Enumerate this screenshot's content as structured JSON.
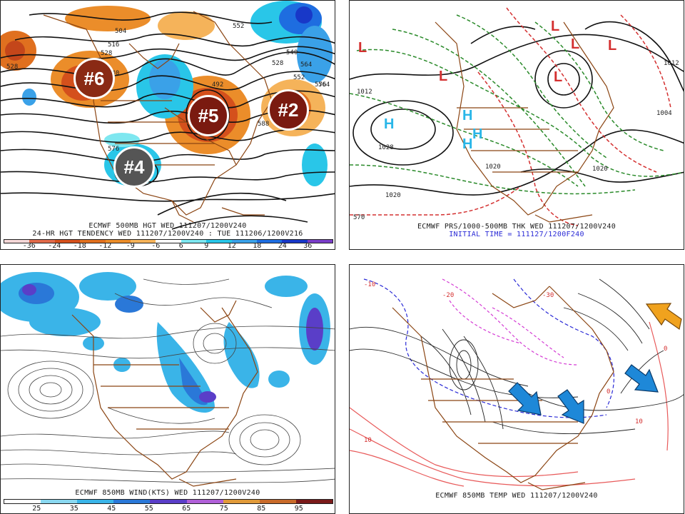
{
  "panels": {
    "tl": {
      "caption1": "ECMWF 500MB HGT WED 111207/1200V240",
      "caption2": "24-HR HGT TENDENCY WED 111207/1200V240 : TUE 111206/1200V216",
      "ticks": [
        "-36",
        "-24",
        "-18",
        "-12",
        "-9",
        "-6",
        "6",
        "9",
        "12",
        "18",
        "24",
        "36"
      ],
      "contour_labels": [
        "528",
        "504",
        "516",
        "528",
        "540",
        "552",
        "564",
        "576",
        "588",
        "492",
        "528",
        "540",
        "552",
        "564",
        "576"
      ],
      "badges": [
        "#6",
        "#5",
        "#2",
        "#4"
      ]
    },
    "tr": {
      "caption1": "ECMWF PRS/1000-500MB THK WED 111207/1200V240",
      "caption2": "INITIAL TIME = 111127/1200F240",
      "high_labels": [
        "H",
        "H",
        "H",
        "H"
      ],
      "low_labels": [
        "L",
        "L",
        "L",
        "L",
        "L",
        "L"
      ],
      "contour_labels": [
        "1028",
        "1020",
        "1020",
        "1012",
        "1004",
        "1012",
        "1020",
        "570"
      ]
    },
    "bl": {
      "caption1": "ECMWF 850MB WIND(KTS) WED 111207/1200V240",
      "ticks": [
        "25",
        "35",
        "45",
        "55",
        "65",
        "75",
        "85",
        "95"
      ]
    },
    "br": {
      "caption1": "ECMWF 850MB TEMP WED 111207/1200V240",
      "contour_labels": [
        "-10",
        "-20",
        "-30",
        "0",
        "10",
        "10",
        "0"
      ]
    }
  },
  "colors": {
    "tl_scale": [
      "#f4d7d7",
      "#e06a4a",
      "#d4501c",
      "#e0701f",
      "#eb8d2a",
      "#f5b35a",
      "#ffffff",
      "#7ee7f0",
      "#29c6e8",
      "#3aa1e8",
      "#1e6de0",
      "#1838c8",
      "#7a3ec8"
    ],
    "bl_scale": [
      "#ffffff",
      "#8ad8f0",
      "#3ab4e8",
      "#2a78d8",
      "#5a3ec8",
      "#b060d8",
      "#e09a3a",
      "#c86a2a",
      "#7a1a1a"
    ],
    "orange": "#e6782a",
    "blue": "#2ec6e6",
    "coast": "#8b4513",
    "arrow_blue": "#1e88d8",
    "arrow_orange": "#f0a21e"
  }
}
